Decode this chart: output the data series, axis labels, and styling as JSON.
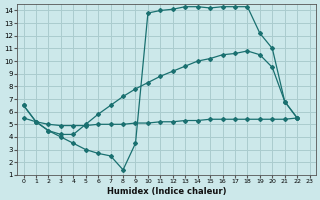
{
  "xlabel": "Humidex (Indice chaleur)",
  "ylabel": "",
  "bg_color": "#cce8ea",
  "grid_color": "#aaccce",
  "line_color": "#1a7070",
  "xlim": [
    -0.5,
    23.5
  ],
  "ylim": [
    1,
    14.5
  ],
  "xticks": [
    0,
    1,
    2,
    3,
    4,
    5,
    6,
    7,
    8,
    9,
    10,
    11,
    12,
    13,
    14,
    15,
    16,
    17,
    18,
    19,
    20,
    21,
    22,
    23
  ],
  "yticks": [
    1,
    2,
    3,
    4,
    5,
    6,
    7,
    8,
    9,
    10,
    11,
    12,
    13,
    14
  ],
  "line1_x": [
    0,
    1,
    2,
    3,
    4,
    5,
    6,
    7,
    8,
    9,
    10,
    11,
    12,
    13,
    14,
    15,
    16,
    17,
    18,
    19,
    20,
    21,
    22
  ],
  "line1_y": [
    6.5,
    5.2,
    4.5,
    4.0,
    3.5,
    3.0,
    2.7,
    2.5,
    1.4,
    3.5,
    13.8,
    14.0,
    14.1,
    14.3,
    14.3,
    14.2,
    14.3,
    14.3,
    14.3,
    12.2,
    11.0,
    6.8,
    5.5
  ],
  "line2_x": [
    0,
    1,
    2,
    3,
    4,
    5,
    6,
    7,
    8,
    9,
    10,
    11,
    12,
    13,
    14,
    15,
    16,
    17,
    18,
    19,
    20,
    21,
    22
  ],
  "line2_y": [
    6.5,
    5.2,
    4.5,
    4.2,
    4.2,
    5.0,
    5.8,
    6.5,
    7.2,
    7.8,
    8.3,
    8.8,
    9.2,
    9.6,
    10.0,
    10.2,
    10.5,
    10.6,
    10.8,
    10.5,
    9.5,
    6.8,
    5.5
  ],
  "line3_x": [
    0,
    1,
    2,
    3,
    4,
    5,
    6,
    7,
    8,
    9,
    10,
    11,
    12,
    13,
    14,
    15,
    16,
    17,
    18,
    19,
    20,
    21,
    22
  ],
  "line3_y": [
    5.5,
    5.2,
    5.0,
    4.9,
    4.9,
    4.9,
    5.0,
    5.0,
    5.0,
    5.1,
    5.1,
    5.2,
    5.2,
    5.3,
    5.3,
    5.4,
    5.4,
    5.4,
    5.4,
    5.4,
    5.4,
    5.4,
    5.5
  ]
}
